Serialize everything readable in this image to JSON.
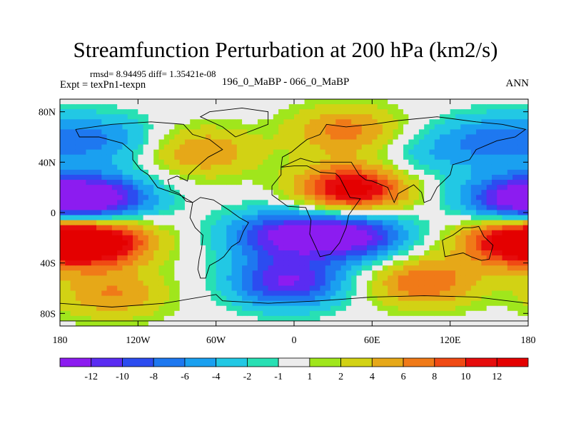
{
  "title": "Streamfunction Perturbation at 200 hPa (km2/s)",
  "stats_line": "rmsd= 8.94495 diff= 1.35421e-08",
  "experiment": "Expt = texPn1-texpn",
  "subtitle": "196_0_MaBP - 066_0_MaBP",
  "season": "ANN",
  "chart_data": {
    "type": "heatmap",
    "title": "Streamfunction Perturbation at 200 hPa (km2/s)",
    "x_ticks": [
      {
        "value": -180,
        "label": "180"
      },
      {
        "value": -120,
        "label": "120W"
      },
      {
        "value": -60,
        "label": "60W"
      },
      {
        "value": 0,
        "label": "0"
      },
      {
        "value": 60,
        "label": "60E"
      },
      {
        "value": 120,
        "label": "120E"
      },
      {
        "value": 180,
        "label": "180"
      }
    ],
    "y_ticks": [
      {
        "value": 80,
        "label": "80N"
      },
      {
        "value": 40,
        "label": "40N"
      },
      {
        "value": 0,
        "label": "0"
      },
      {
        "value": -40,
        "label": "40S"
      },
      {
        "value": -80,
        "label": "80S"
      }
    ],
    "xlim": [
      -180,
      180
    ],
    "ylim": [
      -90,
      90
    ],
    "colorbar": {
      "labels": [
        "-12",
        "-10",
        "-8",
        "-6",
        "-4",
        "-2",
        "-1",
        "1",
        "2",
        "4",
        "6",
        "8",
        "10",
        "12"
      ],
      "colors": [
        "#8c1cf0",
        "#5a2cf2",
        "#2c4cf0",
        "#1e78f0",
        "#1aa0f0",
        "#22c8e4",
        "#28e0b4",
        "#ececec",
        "#a0e61c",
        "#d2d214",
        "#e6a818",
        "#f07a18",
        "#f04a14",
        "#e60c0c",
        "#e40000"
      ]
    },
    "fields": [
      {
        "lon": -150,
        "lat": 10,
        "value": -13
      },
      {
        "lon": -150,
        "lat": -22,
        "value": 14
      },
      {
        "lon": 170,
        "lat": 10,
        "value": -12
      },
      {
        "lon": 170,
        "lat": -22,
        "value": 13
      },
      {
        "lon": 45,
        "lat": 18,
        "value": 14
      },
      {
        "lon": 45,
        "lat": -18,
        "value": -13
      },
      {
        "lon": -10,
        "lat": -18,
        "value": -11
      },
      {
        "lon": -5,
        "lat": -55,
        "value": -12
      },
      {
        "lon": -150,
        "lat": 58,
        "value": -6
      },
      {
        "lon": 150,
        "lat": 58,
        "value": -6
      },
      {
        "lon": 40,
        "lat": 65,
        "value": 7
      },
      {
        "lon": -70,
        "lat": 48,
        "value": 6
      },
      {
        "lon": 100,
        "lat": -55,
        "value": 8
      },
      {
        "lon": -140,
        "lat": -65,
        "value": 6
      },
      {
        "lon": 100,
        "lat": 45,
        "value": -3
      }
    ]
  }
}
